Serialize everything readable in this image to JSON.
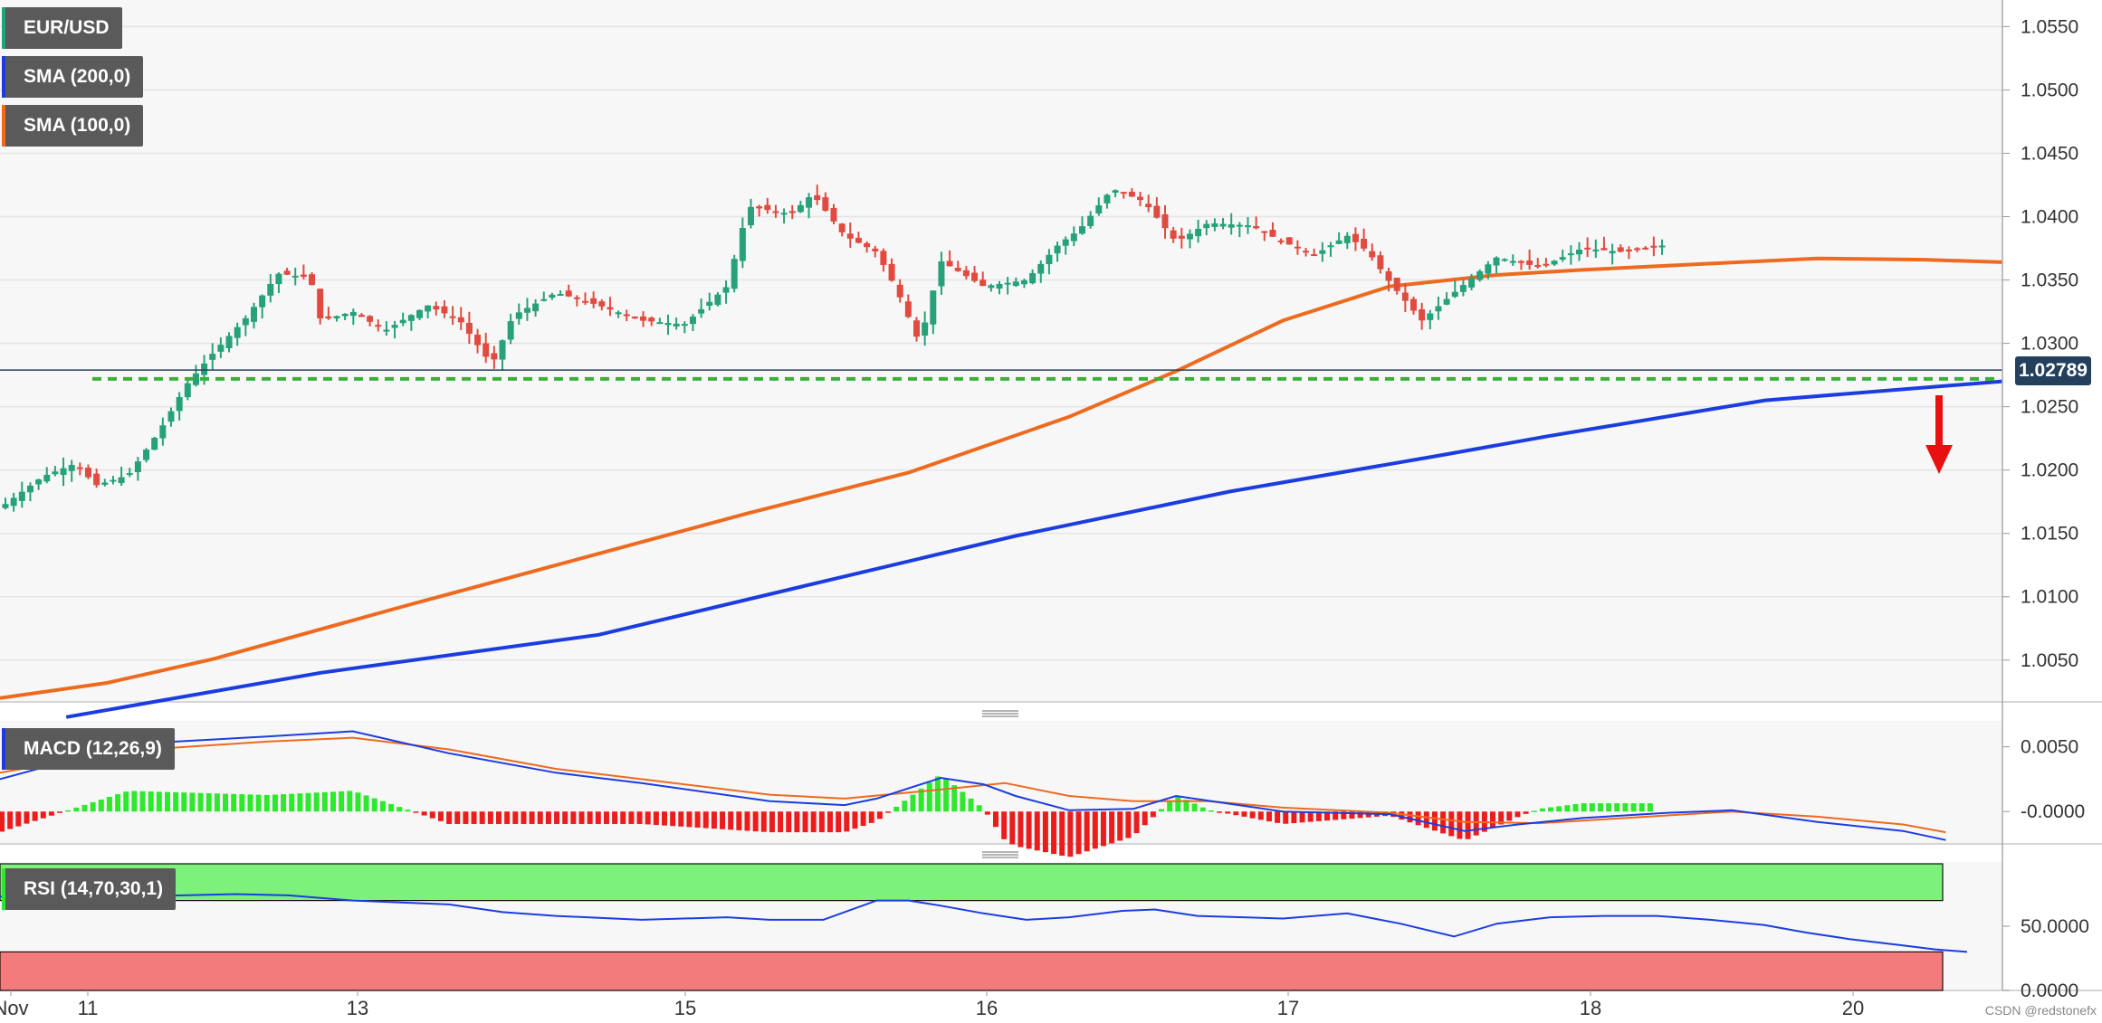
{
  "legend": {
    "symbol": "EUR/USD",
    "sma200": "SMA (200,0)",
    "sma100": "SMA (100,0)",
    "macd": "MACD (12,26,9)",
    "rsi": "RSI (14,70,30,1)"
  },
  "price_tag": "1.02789",
  "credit": "CSDN @redstonefx",
  "colors": {
    "up": "#26a17a",
    "down": "#e04a3f",
    "sma200": "#1b3de0",
    "sma100": "#ee6a1e",
    "support": "#3ab03a",
    "arrow": "#e81010",
    "hist_pos": "#2ee82e",
    "hist_neg": "#ec1c1c",
    "rsi_over": "#7cf27c",
    "rsi_under": "#f47b7b"
  },
  "chart_data": [
    {
      "type": "candlestick",
      "title": "EUR/USD",
      "ylim": [
        1.0017,
        1.0571
      ],
      "y_ticks": [
        "1.0550",
        "1.0500",
        "1.0450",
        "1.0400",
        "1.0350",
        "1.0300",
        "1.0250",
        "1.0200",
        "1.0150",
        "1.0100",
        "1.0050"
      ],
      "x_ticks": [
        "Nov",
        "11",
        "13",
        "15",
        "16",
        "17",
        "18",
        "20"
      ],
      "last_price": 1.02789,
      "support_level": 1.0272,
      "series": [
        {
          "name": "SMA (200,0)",
          "points": [
            [
              62,
              1.0005
            ],
            [
              300,
              1.004
            ],
            [
              560,
              1.007
            ],
            [
              750,
              1.0108
            ],
            [
              950,
              1.0148
            ],
            [
              1150,
              1.0183
            ],
            [
              1350,
              1.0212
            ],
            [
              1450,
              1.0227
            ],
            [
              1651,
              1.0255
            ],
            [
              1873,
              1.027
            ]
          ]
        },
        {
          "name": "SMA (100,0)",
          "points": [
            [
              0,
              1.002
            ],
            [
              100,
              1.0032
            ],
            [
              200,
              1.0051
            ],
            [
              380,
              1.0093
            ],
            [
              560,
              1.0134
            ],
            [
              700,
              1.0166
            ],
            [
              850,
              1.0198
            ],
            [
              1000,
              1.0242
            ],
            [
              1100,
              1.0278
            ],
            [
              1200,
              1.0318
            ],
            [
              1300,
              1.0345
            ],
            [
              1400,
              1.0354
            ],
            [
              1480,
              1.0358
            ],
            [
              1600,
              1.0363
            ],
            [
              1700,
              1.0367
            ],
            [
              1800,
              1.0366
            ],
            [
              1873,
              1.0364
            ]
          ]
        }
      ]
    },
    {
      "type": "line",
      "title": "MACD (12,26,9)",
      "ylim": [
        -0.0025,
        0.007
      ],
      "y_ticks": [
        "0.0050",
        "-0.0000"
      ],
      "series": [
        {
          "name": "MACD",
          "points": [
            [
              0,
              0.0025
            ],
            [
              120,
              0.0052
            ],
            [
              250,
              0.0058
            ],
            [
              330,
              0.0062
            ],
            [
              420,
              0.0045
            ],
            [
              520,
              0.003
            ],
            [
              600,
              0.0022
            ],
            [
              720,
              0.0008
            ],
            [
              790,
              0.0005
            ],
            [
              820,
              0.001
            ],
            [
              880,
              0.0026
            ],
            [
              920,
              0.0021
            ],
            [
              950,
              0.0012
            ],
            [
              1000,
              0.0001
            ],
            [
              1060,
              0.0002
            ],
            [
              1100,
              0.0012
            ],
            [
              1150,
              0.0006
            ],
            [
              1200,
              0.0
            ],
            [
              1300,
              -0.0002
            ],
            [
              1370,
              -0.0015
            ],
            [
              1420,
              -0.001
            ],
            [
              1480,
              -0.0005
            ],
            [
              1560,
              -0.0001
            ],
            [
              1620,
              0.0001
            ],
            [
              1700,
              -0.0008
            ],
            [
              1780,
              -0.0015
            ],
            [
              1820,
              -0.0022
            ]
          ]
        },
        {
          "name": "Signal",
          "points": [
            [
              0,
              0.003
            ],
            [
              120,
              0.0047
            ],
            [
              250,
              0.0054
            ],
            [
              330,
              0.0057
            ],
            [
              420,
              0.0048
            ],
            [
              520,
              0.0033
            ],
            [
              600,
              0.0025
            ],
            [
              720,
              0.0013
            ],
            [
              790,
              0.001
            ],
            [
              880,
              0.0017
            ],
            [
              940,
              0.0022
            ],
            [
              1000,
              0.0012
            ],
            [
              1060,
              0.0008
            ],
            [
              1130,
              0.0008
            ],
            [
              1200,
              0.0003
            ],
            [
              1300,
              -0.0001
            ],
            [
              1370,
              -0.0008
            ],
            [
              1440,
              -0.0009
            ],
            [
              1520,
              -0.0005
            ],
            [
              1620,
              0.0
            ],
            [
              1700,
              -0.0004
            ],
            [
              1780,
              -0.001
            ],
            [
              1820,
              -0.0016
            ]
          ]
        }
      ]
    },
    {
      "type": "line",
      "title": "RSI (14,70,30,1)",
      "ylim": [
        0,
        100
      ],
      "y_ticks": [
        "50.0000",
        "0.0000"
      ],
      "overbought": 70,
      "oversold": 30,
      "series": [
        {
          "name": "RSI",
          "points": [
            [
              0,
              73
            ],
            [
              120,
              73
            ],
            [
              220,
              75
            ],
            [
              270,
              74
            ],
            [
              330,
              70
            ],
            [
              420,
              67
            ],
            [
              470,
              61
            ],
            [
              520,
              58
            ],
            [
              600,
              55
            ],
            [
              680,
              57
            ],
            [
              720,
              55
            ],
            [
              770,
              55
            ],
            [
              820,
              70
            ],
            [
              850,
              70
            ],
            [
              880,
              66
            ],
            [
              920,
              60
            ],
            [
              960,
              55
            ],
            [
              1000,
              57
            ],
            [
              1050,
              62
            ],
            [
              1080,
              63
            ],
            [
              1120,
              58
            ],
            [
              1200,
              56
            ],
            [
              1260,
              60
            ],
            [
              1310,
              52
            ],
            [
              1360,
              42
            ],
            [
              1400,
              52
            ],
            [
              1450,
              57
            ],
            [
              1500,
              58
            ],
            [
              1550,
              58
            ],
            [
              1600,
              55
            ],
            [
              1650,
              51
            ],
            [
              1690,
              45
            ],
            [
              1730,
              40
            ],
            [
              1780,
              35
            ],
            [
              1810,
              32
            ],
            [
              1840,
              30
            ]
          ]
        }
      ]
    }
  ]
}
